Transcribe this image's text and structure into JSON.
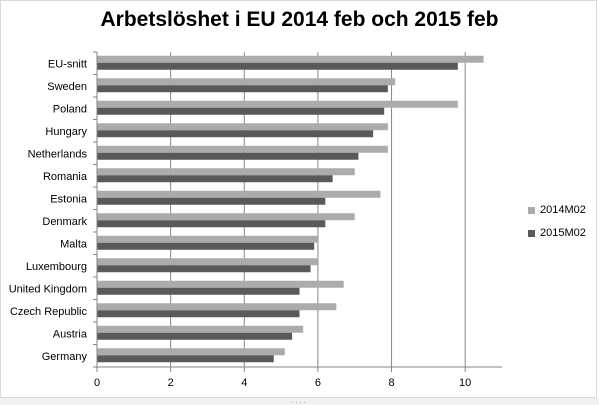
{
  "chart_data": {
    "type": "bar",
    "orientation": "horizontal",
    "title": "Arbetslöshet i EU 2014 feb och 2015 feb",
    "xlabel": "",
    "ylabel": "",
    "categories": [
      "EU-snitt",
      "Sweden",
      "Poland",
      "Hungary",
      "Netherlands",
      "Romania",
      "Estonia",
      "Denmark",
      "Malta",
      "Luxembourg",
      "United Kingdom",
      "Czech Republic",
      "Austria",
      "Germany"
    ],
    "series": [
      {
        "name": "2014M02",
        "color": "#ababab",
        "values": [
          10.5,
          8.1,
          9.8,
          7.9,
          7.9,
          7.0,
          7.7,
          7.0,
          6.0,
          6.0,
          6.7,
          6.5,
          5.6,
          5.1
        ]
      },
      {
        "name": "2015M02",
        "color": "#595959",
        "values": [
          9.8,
          7.9,
          7.8,
          7.5,
          7.1,
          6.4,
          6.2,
          6.2,
          5.9,
          5.8,
          5.5,
          5.5,
          5.3,
          4.8
        ]
      }
    ],
    "xlim": [
      0,
      11
    ],
    "xticks": [
      0,
      2,
      4,
      6,
      8,
      10
    ],
    "grid": "vertical major",
    "legend_position": "right"
  },
  "resize_handle": "....",
  "colors": {
    "gridline": "#868686",
    "axis": "#868686",
    "frame": "#d9d9d9"
  }
}
